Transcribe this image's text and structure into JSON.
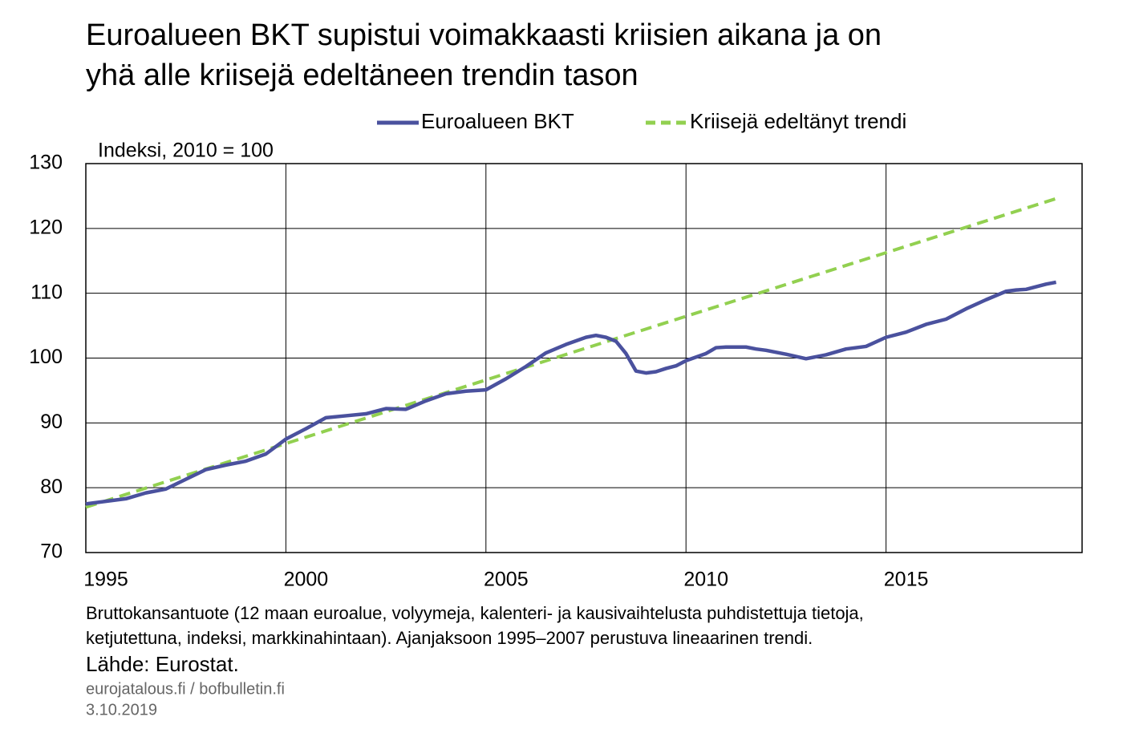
{
  "chart_data": {
    "type": "line",
    "title": [
      "Euroalueen BKT supistui voimakkaasti kriisien aikana ja on",
      "yhä alle kriisejä edeltäneen trendin tason"
    ],
    "y_label": "Indeksi, 2010 = 100",
    "series": [
      {
        "name": "Euroalueen BKT",
        "color": "#4a519e",
        "dashed": false,
        "x": [
          1995,
          1996,
          1996.5,
          1997,
          1997.5,
          1998,
          1998.5,
          1999,
          1999.5,
          2000,
          2000.5,
          2001,
          2001.5,
          2002,
          2002.5,
          2003,
          2003.5,
          2004,
          2004.5,
          2005,
          2005.5,
          2006,
          2006.5,
          2007,
          2007.5,
          2007.75,
          2008,
          2008.25,
          2008.5,
          2008.75,
          2009,
          2009.25,
          2009.5,
          2009.75,
          2010,
          2010.5,
          2010.75,
          2011,
          2011.5,
          2011.75,
          2012,
          2012.5,
          2013,
          2013.5,
          2014,
          2014.5,
          2015,
          2015.5,
          2016,
          2016.5,
          2017,
          2017.5,
          2018,
          2018.25,
          2018.5,
          2019,
          2019.25
        ],
        "values": [
          77.5,
          78.3,
          79.2,
          79.8,
          81.3,
          82.8,
          83.5,
          84.1,
          85.2,
          87.5,
          89.1,
          90.8,
          91.1,
          91.4,
          92.2,
          92.1,
          93.4,
          94.5,
          94.9,
          95.1,
          96.8,
          98.7,
          100.8,
          102.1,
          103.2,
          103.5,
          103.2,
          102.6,
          100.7,
          98.0,
          97.7,
          97.9,
          98.4,
          98.8,
          99.6,
          100.7,
          101.6,
          101.7,
          101.7,
          101.4,
          101.2,
          100.6,
          99.9,
          100.5,
          101.4,
          101.8,
          103.2,
          104.0,
          105.2,
          106.0,
          107.6,
          109.0,
          110.3,
          110.5,
          110.6,
          111.4,
          111.7
        ]
      },
      {
        "name": "Kriisejä edeltänyt trendi",
        "color": "#92d050",
        "dashed": true,
        "x": [
          1995,
          2019.25
        ],
        "values": [
          77,
          124.6
        ]
      }
    ],
    "xlim": [
      1995,
      2020
    ],
    "xticks": [
      1995,
      2000,
      2005,
      2010,
      2015
    ],
    "ylim": [
      70,
      130
    ],
    "yticks": [
      70,
      80,
      90,
      100,
      110,
      120,
      130
    ],
    "grid": true,
    "footnote": [
      "Bruttokansantuote (12 maan euroalue, volyymeja, kalenteri- ja kausivaihtelusta puhdistettuja tietoja,",
      "ketjutettuna, indeksi, markkinahintaan). Ajanjaksoon 1995–2007 perustuva lineaarinen trendi."
    ],
    "source": "Lähde: Eurostat.",
    "site": "eurojatalous.fi  / bofbulletin.fi",
    "date": "3.10.2019"
  }
}
